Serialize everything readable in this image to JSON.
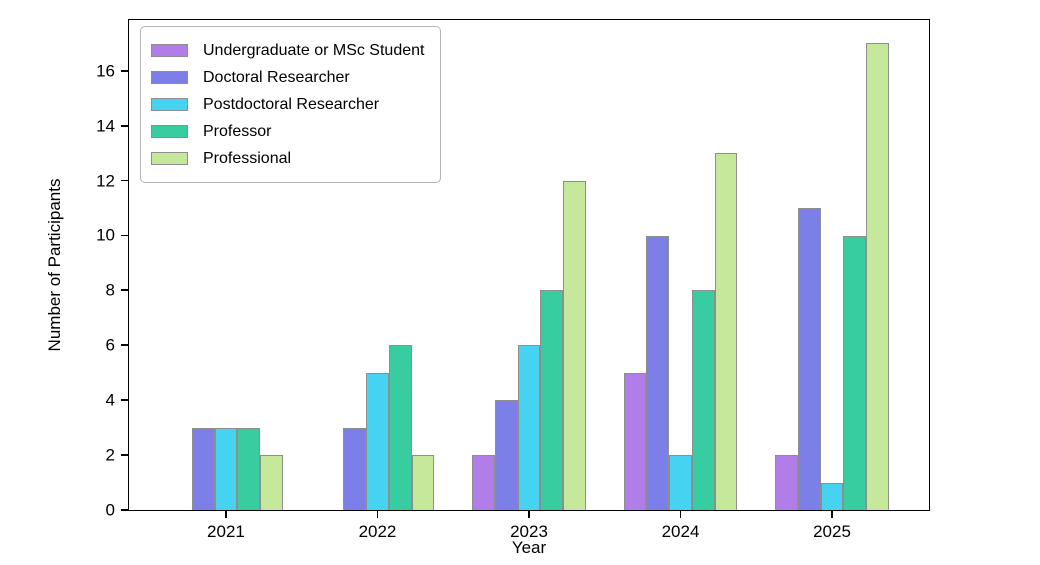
{
  "chart_data": {
    "type": "bar",
    "title": "",
    "xlabel": "Year",
    "ylabel": "Number of Participants",
    "categories": [
      "2021",
      "2022",
      "2023",
      "2024",
      "2025"
    ],
    "series": [
      {
        "name": "Undergraduate or MSc Student",
        "color": "#b17de9",
        "values": [
          0,
          0,
          2,
          5,
          2
        ]
      },
      {
        "name": "Doctoral Researcher",
        "color": "#7d7fe9",
        "values": [
          3,
          3,
          4,
          10,
          11
        ]
      },
      {
        "name": "Postdoctoral Researcher",
        "color": "#46d3f2",
        "values": [
          3,
          5,
          6,
          2,
          1
        ]
      },
      {
        "name": "Professor",
        "color": "#38cda0",
        "values": [
          3,
          6,
          8,
          8,
          10
        ]
      },
      {
        "name": "Professional",
        "color": "#c6e89a",
        "values": [
          2,
          2,
          12,
          13,
          17
        ]
      }
    ],
    "yticks": [
      0,
      2,
      4,
      6,
      8,
      10,
      12,
      14,
      16
    ],
    "ylim": [
      0,
      17.85
    ],
    "xlim": [
      -0.64,
      4.64
    ],
    "bar_width": 0.15,
    "bar_edge_color": "#8e8e8e",
    "legend_position": "upper left",
    "grid": false,
    "background_color": "#ffffff",
    "spine_color": "#000000"
  }
}
